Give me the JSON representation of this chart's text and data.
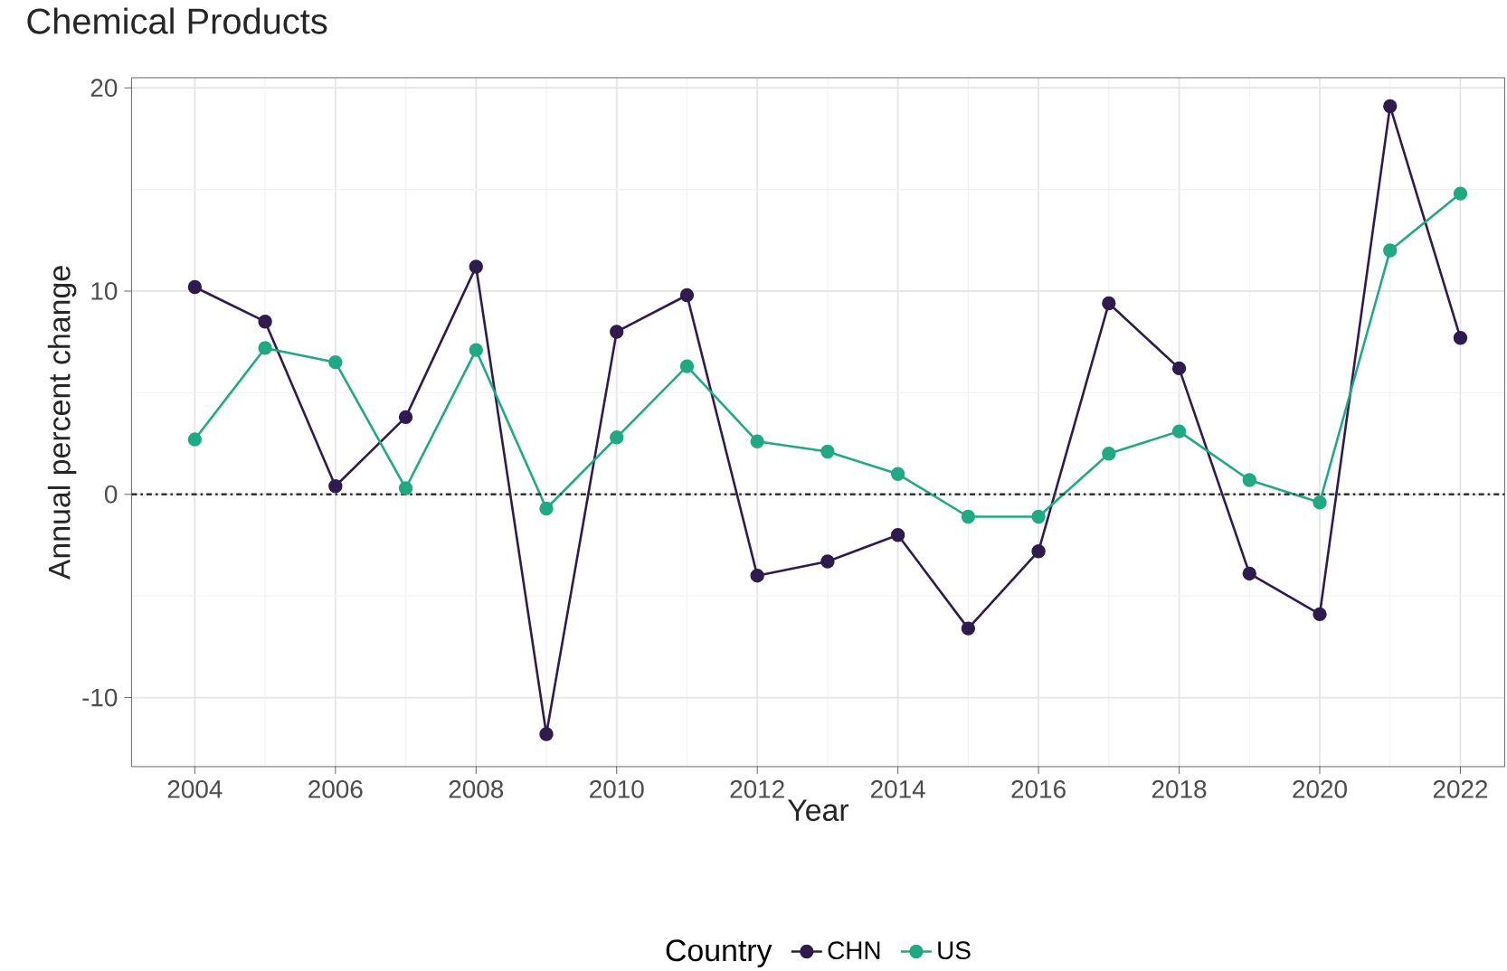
{
  "chart_data": {
    "type": "line",
    "title": "Chemical Products",
    "xlabel": "Year",
    "ylabel": "Annual percent change",
    "legend_title": "Country",
    "x": [
      2004,
      2005,
      2006,
      2007,
      2008,
      2009,
      2010,
      2011,
      2012,
      2013,
      2014,
      2015,
      2016,
      2017,
      2018,
      2019,
      2020,
      2021,
      2022
    ],
    "series": [
      {
        "name": "CHN",
        "color": "#2f1b4e",
        "values": [
          10.2,
          8.5,
          0.4,
          3.8,
          11.2,
          -11.8,
          8.0,
          9.8,
          -4.0,
          -3.3,
          -2.0,
          -6.6,
          -2.8,
          9.4,
          6.2,
          -3.9,
          -5.9,
          19.1,
          7.7
        ]
      },
      {
        "name": "US",
        "color": "#20a983",
        "values": [
          2.7,
          7.2,
          6.5,
          0.3,
          7.1,
          -0.7,
          2.8,
          6.3,
          2.6,
          2.1,
          1.0,
          -1.1,
          -1.1,
          2.0,
          3.1,
          0.7,
          -0.4,
          12.0,
          14.8
        ]
      }
    ],
    "xlim": [
      2003.1,
      2022.63
    ],
    "ylim": [
      -13.4,
      20.5
    ],
    "xticks": [
      2004,
      2006,
      2008,
      2010,
      2012,
      2014,
      2016,
      2018,
      2020,
      2022
    ],
    "yticks": [
      -10,
      0,
      10,
      20
    ],
    "ref_lines": [
      {
        "axis": "y",
        "value": 0,
        "color": "#333333",
        "line_style": "dashdot"
      }
    ],
    "grid": true,
    "legend": "bottom",
    "marker": "circle",
    "line_style": "solid"
  }
}
